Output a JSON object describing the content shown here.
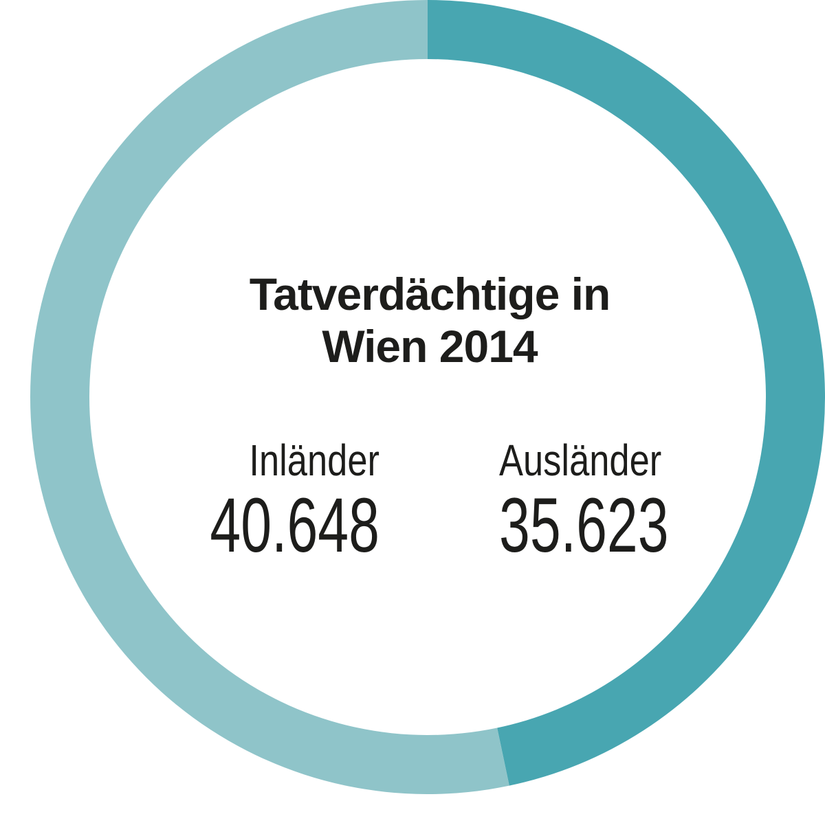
{
  "chart_data": {
    "type": "donut",
    "title": "Tatverdächtige in Wien 2014",
    "categories": [
      "Inländer",
      "Ausländer"
    ],
    "values": [
      40648,
      35623
    ],
    "value_labels": [
      "40.648",
      "35.623"
    ],
    "colors": [
      "#8fc4c9",
      "#48a6b1"
    ]
  }
}
